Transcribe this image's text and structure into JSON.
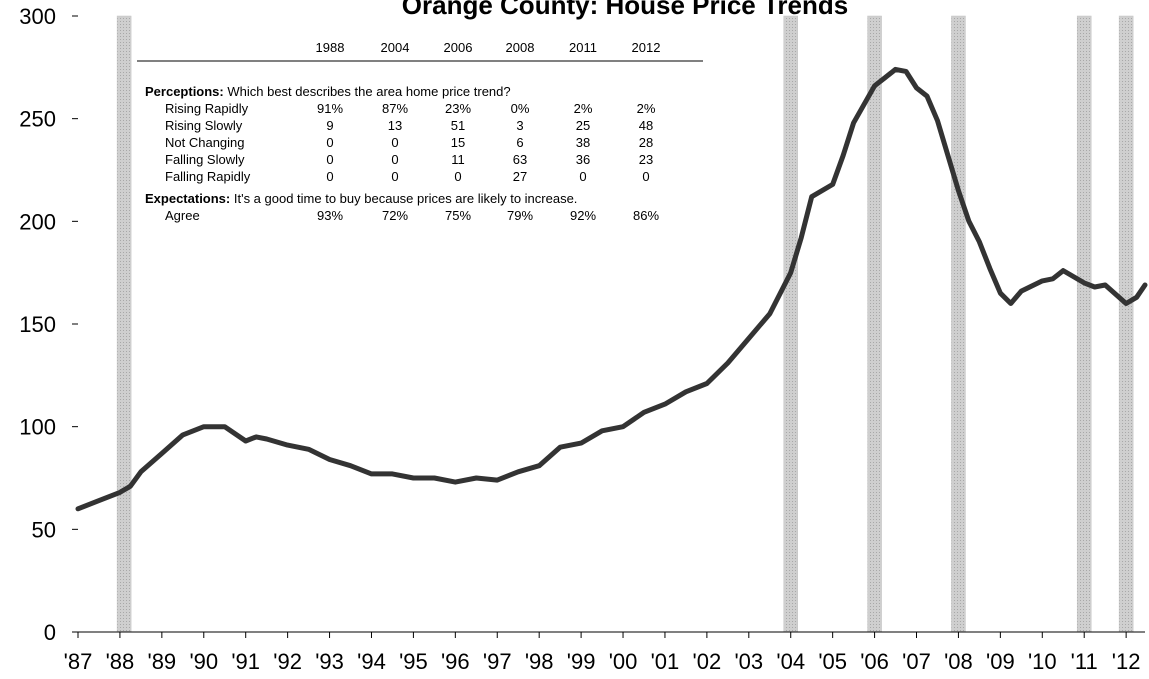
{
  "chart_data": {
    "type": "line",
    "title": "Orange County:  House Price Trends",
    "x": [
      1987,
      1987.5,
      1988,
      1988.25,
      1988.5,
      1989,
      1989.5,
      1990,
      1990.5,
      1991,
      1991.25,
      1991.5,
      1992,
      1992.5,
      1993,
      1993.5,
      1994,
      1994.5,
      1995,
      1995.5,
      1996,
      1996.5,
      1997,
      1997.5,
      1998,
      1998.5,
      1999,
      1999.5,
      2000,
      2000.5,
      2001,
      2001.5,
      2002,
      2002.5,
      2003,
      2003.5,
      2004,
      2004.25,
      2004.5,
      2005,
      2005.25,
      2005.5,
      2006,
      2006.25,
      2006.5,
      2006.75,
      2007,
      2007.25,
      2007.5,
      2008,
      2008.25,
      2008.5,
      2008.75,
      2009,
      2009.25,
      2009.5,
      2010,
      2010.25,
      2010.5,
      2011,
      2011.25,
      2011.5,
      2012,
      2012.25,
      2012.45
    ],
    "series": [
      {
        "color": "#333333",
        "values": [
          60,
          64,
          68,
          71,
          78,
          87,
          96,
          100,
          100,
          93,
          95,
          94,
          91,
          89,
          84,
          81,
          77,
          77,
          75,
          75,
          73,
          75,
          74,
          78,
          81,
          90,
          92,
          98,
          100,
          107,
          111,
          117,
          121,
          131,
          143,
          155,
          175,
          192,
          212,
          218,
          232,
          248,
          266,
          270,
          274,
          273,
          265,
          261,
          249,
          215,
          200,
          190,
          177,
          165,
          160,
          166,
          171,
          172,
          176,
          170,
          168,
          169,
          160,
          163,
          169
        ]
      }
    ],
    "highlight_x": [
      1988.1,
      2004,
      2006,
      2008,
      2011,
      2012
    ],
    "highlight_color": "#c4c4c4",
    "xlim": [
      1987,
      2012.45
    ],
    "xticks": [
      {
        "value": 1987,
        "label": "'87"
      },
      {
        "value": 1988,
        "label": "'88"
      },
      {
        "value": 1989,
        "label": "'89"
      },
      {
        "value": 1990,
        "label": "'90"
      },
      {
        "value": 1991,
        "label": "'91"
      },
      {
        "value": 1992,
        "label": "'92"
      },
      {
        "value": 1993,
        "label": "'93"
      },
      {
        "value": 1994,
        "label": "'94"
      },
      {
        "value": 1995,
        "label": "'95"
      },
      {
        "value": 1996,
        "label": "'96"
      },
      {
        "value": 1997,
        "label": "'97"
      },
      {
        "value": 1998,
        "label": "'98"
      },
      {
        "value": 1999,
        "label": "'99"
      },
      {
        "value": 2000,
        "label": "'00"
      },
      {
        "value": 2001,
        "label": "'01"
      },
      {
        "value": 2002,
        "label": "'02"
      },
      {
        "value": 2003,
        "label": "'03"
      },
      {
        "value": 2004,
        "label": "'04"
      },
      {
        "value": 2005,
        "label": "'05"
      },
      {
        "value": 2006,
        "label": "'06"
      },
      {
        "value": 2007,
        "label": "'07"
      },
      {
        "value": 2008,
        "label": "'08"
      },
      {
        "value": 2009,
        "label": "'09"
      },
      {
        "value": 2010,
        "label": "'10"
      },
      {
        "value": 2011,
        "label": "'11"
      },
      {
        "value": 2012,
        "label": "'12"
      }
    ],
    "ylim": [
      0,
      300
    ],
    "yticks": [
      0,
      50,
      100,
      150,
      200,
      250,
      300
    ],
    "table": {
      "header": [
        "1988",
        "2004",
        "2006",
        "2008",
        "2011",
        "2012"
      ],
      "sections": [
        {
          "label": "Perceptions:",
          "text": " Which best describes the area home price trend?",
          "rows": [
            {
              "name": "Rising Rapidly",
              "cells": [
                "91%",
                "87%",
                "23%",
                "0%",
                "2%",
                "2%"
              ]
            },
            {
              "name": "Rising Slowly",
              "cells": [
                "9",
                "13",
                "51",
                "3",
                "25",
                "48"
              ]
            },
            {
              "name": "Not Changing",
              "cells": [
                "0",
                "0",
                "15",
                "6",
                "38",
                "28"
              ]
            },
            {
              "name": "Falling Slowly",
              "cells": [
                "0",
                "0",
                "11",
                "63",
                "36",
                "23"
              ]
            },
            {
              "name": "Falling Rapidly",
              "cells": [
                "0",
                "0",
                "0",
                "27",
                "0",
                "0"
              ]
            }
          ]
        },
        {
          "label": "Expectations:",
          "text": " It's a good time to buy because prices are likely to increase.",
          "rows": [
            {
              "name": "Agree",
              "cells": [
                "93%",
                "72%",
                "75%",
                "79%",
                "92%",
                "86%"
              ]
            }
          ]
        }
      ]
    }
  }
}
